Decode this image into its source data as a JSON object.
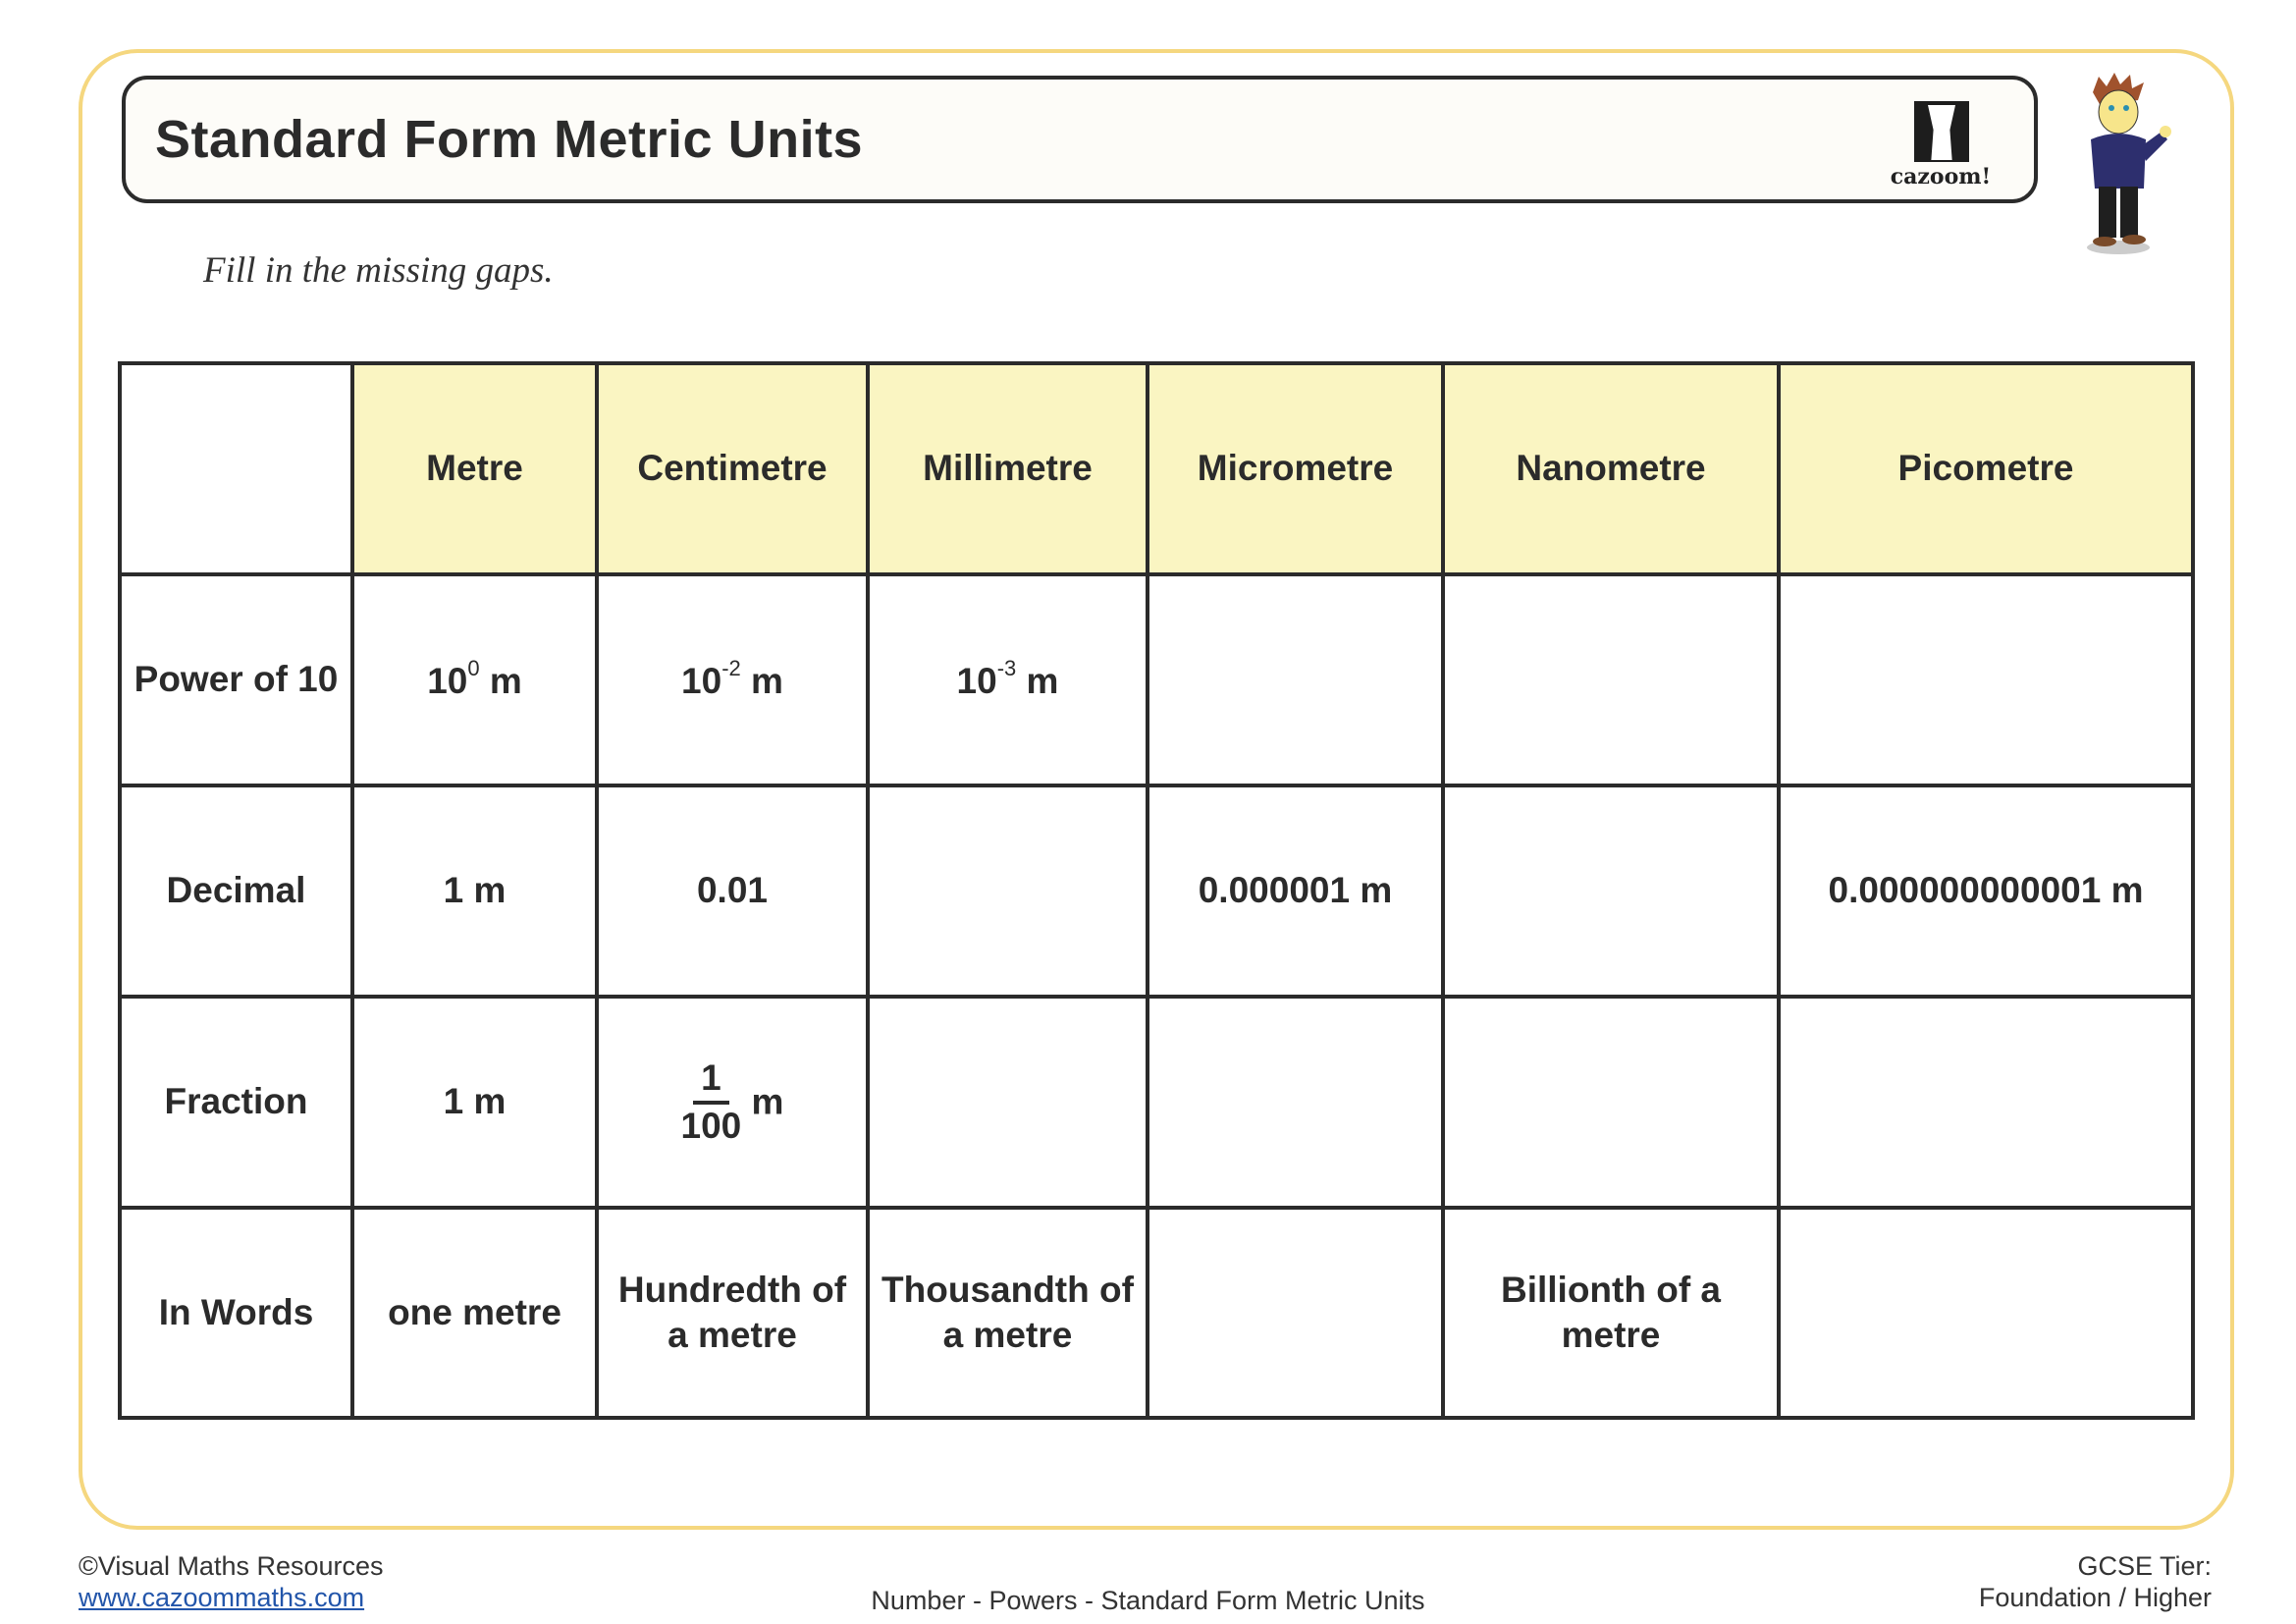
{
  "title": "Standard Form Metric Units",
  "logo_text": "cazoom!",
  "instruction": "Fill in the missing gaps.",
  "table": {
    "headers": [
      "",
      "Metre",
      "Centimetre",
      "Millimetre",
      "Micrometre",
      "Nanometre",
      "Picometre"
    ],
    "rows": [
      {
        "label": "Power of 10",
        "cells": [
          {
            "base": "10",
            "exp": "0",
            "unit": " m"
          },
          {
            "base": "10",
            "exp": "-2",
            "unit": " m"
          },
          {
            "base": "10",
            "exp": "-3",
            "unit": " m"
          },
          {},
          {},
          {}
        ]
      },
      {
        "label": "Decimal",
        "cells": [
          "1 m",
          "0.01",
          "",
          "0.000001 m",
          "",
          "0.000000000001 m"
        ]
      },
      {
        "label": "Fraction",
        "cells": [
          {
            "text": "1 m"
          },
          {
            "num": "1",
            "den": "100",
            "unit": "m"
          },
          {},
          {},
          {},
          {}
        ]
      },
      {
        "label": "In Words",
        "cells": [
          "one metre",
          "Hundredth of a metre",
          "Thousandth of a metre",
          "",
          "Billionth of a metre",
          ""
        ]
      }
    ]
  },
  "footer": {
    "copyright": "©Visual Maths Resources",
    "link": "www.cazoommaths.com",
    "topic": "Number - Powers - Standard Form Metric Units",
    "tier_label": "GCSE Tier:",
    "tier_value": "Foundation / Higher"
  },
  "colors": {
    "frame": "#f5d77f",
    "header_fill": "#faf5c2",
    "border": "#2b2b2b"
  }
}
